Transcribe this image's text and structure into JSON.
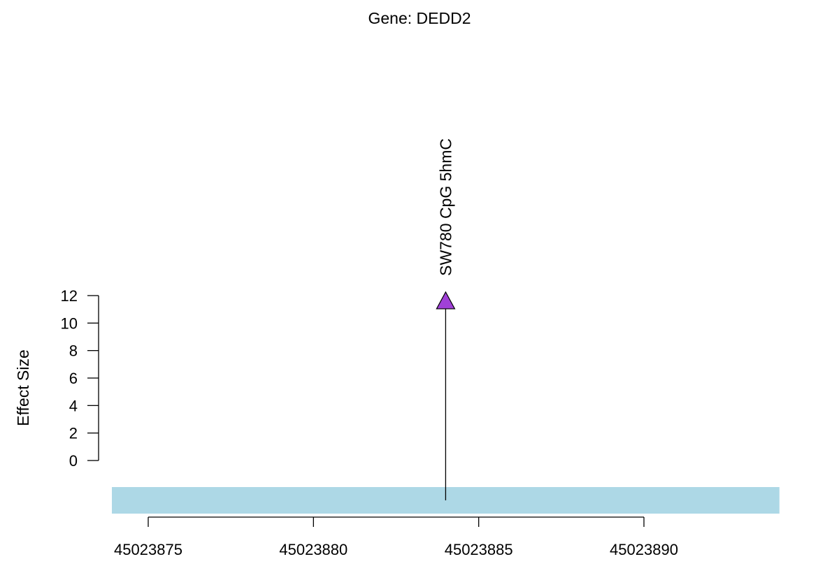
{
  "chart_data": {
    "type": "lollipop",
    "title": "Gene: DEDD2",
    "ylabel": "Effect Size",
    "xlabel": "",
    "yticks": [
      0,
      2,
      4,
      6,
      8,
      10,
      12
    ],
    "ylim": [
      0,
      12
    ],
    "xticks": [
      45023875,
      45023880,
      45023885,
      45023890
    ],
    "xlim": [
      45023873.9,
      45023894.1
    ],
    "gene_region": {
      "start": 45023873.9,
      "end": 45023894.1,
      "color": "#add8e6"
    },
    "points": [
      {
        "x": 45023884,
        "y": 11.6,
        "label": "SW780 CpG 5hmC",
        "marker": "triangle",
        "color": "#a040d8"
      }
    ]
  }
}
